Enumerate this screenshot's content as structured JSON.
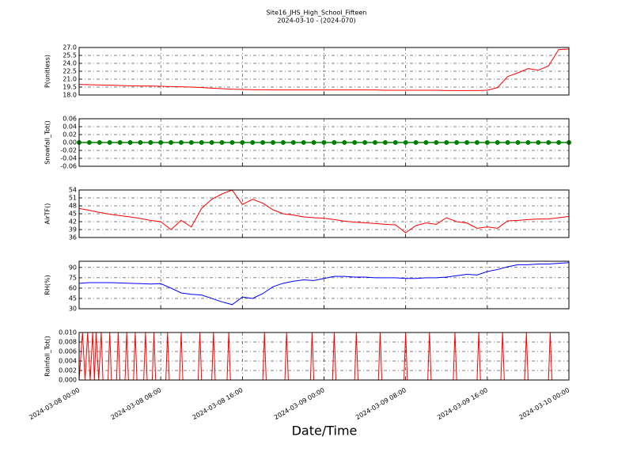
{
  "title": "Site16_JHS_High_School_Fifteen",
  "subtitle": "2024-03-10 - (2024-070)",
  "xlabel": "Date/Time",
  "chart_data": [
    {
      "type": "line",
      "ylabel": "P(unitless)",
      "color": "#ff0000",
      "xlim": [
        "2024-03-08 00:00",
        "2024-03-10 00:00"
      ],
      "xticks": [
        "2024-03-08 00:00",
        "2024-03-08 08:00",
        "2024-03-08 16:00",
        "2024-03-09 00:00",
        "2024-03-09 08:00",
        "2024-03-09 16:00",
        "2024-03-10 00:00"
      ],
      "ylim": [
        18,
        27
      ],
      "grid": true,
      "yticks": [
        {
          "value": 18,
          "label": "18.0"
        },
        {
          "value": 19.5,
          "label": "19.5"
        },
        {
          "value": 21,
          "label": "21.0"
        },
        {
          "value": 22.5,
          "label": "22.5"
        },
        {
          "value": 24,
          "label": "24.0"
        },
        {
          "value": 25.5,
          "label": "25.5"
        },
        {
          "value": 27,
          "label": "27.0"
        }
      ],
      "x": [
        "2024-03-08 00:00",
        "2024-03-08 01:00",
        "2024-03-08 02:00",
        "2024-03-08 03:00",
        "2024-03-08 04:00",
        "2024-03-08 05:00",
        "2024-03-08 06:00",
        "2024-03-08 07:00",
        "2024-03-08 08:00",
        "2024-03-08 09:00",
        "2024-03-08 10:00",
        "2024-03-08 11:00",
        "2024-03-08 12:00",
        "2024-03-08 13:00",
        "2024-03-08 14:00",
        "2024-03-08 15:00",
        "2024-03-08 16:00",
        "2024-03-08 17:00",
        "2024-03-08 18:00",
        "2024-03-08 19:00",
        "2024-03-08 20:00",
        "2024-03-08 21:00",
        "2024-03-08 22:00",
        "2024-03-08 23:00",
        "2024-03-09 00:00",
        "2024-03-09 01:00",
        "2024-03-09 02:00",
        "2024-03-09 03:00",
        "2024-03-09 04:00",
        "2024-03-09 05:00",
        "2024-03-09 06:00",
        "2024-03-09 07:00",
        "2024-03-09 08:00",
        "2024-03-09 09:00",
        "2024-03-09 10:00",
        "2024-03-09 11:00",
        "2024-03-09 12:00",
        "2024-03-09 13:00",
        "2024-03-09 14:00",
        "2024-03-09 15:00",
        "2024-03-09 16:00",
        "2024-03-09 17:00",
        "2024-03-09 18:00",
        "2024-03-09 19:00",
        "2024-03-09 20:00",
        "2024-03-09 21:00",
        "2024-03-09 22:00",
        "2024-03-09 23:00",
        "2024-03-10 00:00"
      ],
      "values": [
        20.0,
        19.95,
        19.9,
        19.85,
        19.8,
        19.75,
        19.7,
        19.7,
        19.65,
        19.6,
        19.55,
        19.5,
        19.4,
        19.3,
        19.2,
        19.1,
        19.05,
        19.0,
        19.0,
        18.95,
        18.95,
        18.95,
        18.95,
        18.95,
        18.95,
        18.95,
        18.95,
        18.95,
        18.95,
        18.95,
        18.9,
        18.9,
        18.9,
        18.9,
        18.9,
        18.9,
        18.85,
        18.85,
        18.85,
        18.85,
        18.9,
        19.4,
        21.5,
        22.2,
        23.0,
        22.7,
        23.5,
        26.6,
        26.7
      ]
    },
    {
      "type": "line",
      "ylabel": "Snowfall_Tot()",
      "color": "#008000",
      "marker": "o",
      "xlim": [
        "2024-03-08 00:00",
        "2024-03-10 00:00"
      ],
      "xticks": [
        "2024-03-08 00:00",
        "2024-03-08 08:00",
        "2024-03-08 16:00",
        "2024-03-09 00:00",
        "2024-03-09 08:00",
        "2024-03-09 16:00",
        "2024-03-10 00:00"
      ],
      "ylim": [
        -0.06,
        0.06
      ],
      "grid": true,
      "yticks": [
        {
          "value": -0.06,
          "label": "-0.06"
        },
        {
          "value": -0.04,
          "label": "-0.04"
        },
        {
          "value": -0.02,
          "label": "-0.02"
        },
        {
          "value": 0,
          "label": "0.00"
        },
        {
          "value": 0.02,
          "label": "0.02"
        },
        {
          "value": 0.04,
          "label": "0.04"
        },
        {
          "value": 0.06,
          "label": "0.06"
        }
      ],
      "x": [
        "2024-03-08 00:00",
        "2024-03-08 01:00",
        "2024-03-08 02:00",
        "2024-03-08 03:00",
        "2024-03-08 04:00",
        "2024-03-08 05:00",
        "2024-03-08 06:00",
        "2024-03-08 07:00",
        "2024-03-08 08:00",
        "2024-03-08 09:00",
        "2024-03-08 10:00",
        "2024-03-08 11:00",
        "2024-03-08 12:00",
        "2024-03-08 13:00",
        "2024-03-08 14:00",
        "2024-03-08 15:00",
        "2024-03-08 16:00",
        "2024-03-08 17:00",
        "2024-03-08 18:00",
        "2024-03-08 19:00",
        "2024-03-08 20:00",
        "2024-03-08 21:00",
        "2024-03-08 22:00",
        "2024-03-08 23:00",
        "2024-03-09 00:00",
        "2024-03-09 01:00",
        "2024-03-09 02:00",
        "2024-03-09 03:00",
        "2024-03-09 04:00",
        "2024-03-09 05:00",
        "2024-03-09 06:00",
        "2024-03-09 07:00",
        "2024-03-09 08:00",
        "2024-03-09 09:00",
        "2024-03-09 10:00",
        "2024-03-09 11:00",
        "2024-03-09 12:00",
        "2024-03-09 13:00",
        "2024-03-09 14:00",
        "2024-03-09 15:00",
        "2024-03-09 16:00",
        "2024-03-09 17:00",
        "2024-03-09 18:00",
        "2024-03-09 19:00",
        "2024-03-09 20:00",
        "2024-03-09 21:00",
        "2024-03-09 22:00",
        "2024-03-09 23:00",
        "2024-03-10 00:00"
      ],
      "values": [
        0,
        0,
        0,
        0,
        0,
        0,
        0,
        0,
        0,
        0,
        0,
        0,
        0,
        0,
        0,
        0,
        0,
        0,
        0,
        0,
        0,
        0,
        0,
        0,
        0,
        0,
        0,
        0,
        0,
        0,
        0,
        0,
        0,
        0,
        0,
        0,
        0,
        0,
        0,
        0,
        0,
        0,
        0,
        0,
        0,
        0,
        0,
        0,
        0
      ]
    },
    {
      "type": "line",
      "ylabel": "AirTF()",
      "color": "#ff0000",
      "xlim": [
        "2024-03-08 00:00",
        "2024-03-10 00:00"
      ],
      "xticks": [
        "2024-03-08 00:00",
        "2024-03-08 08:00",
        "2024-03-08 16:00",
        "2024-03-09 00:00",
        "2024-03-09 08:00",
        "2024-03-09 16:00",
        "2024-03-10 00:00"
      ],
      "ylim": [
        36,
        54
      ],
      "grid": true,
      "yticks": [
        36,
        39,
        42,
        45,
        48,
        51,
        54
      ],
      "x": [
        "2024-03-08 00:00",
        "2024-03-08 01:00",
        "2024-03-08 02:00",
        "2024-03-08 03:00",
        "2024-03-08 04:00",
        "2024-03-08 05:00",
        "2024-03-08 06:00",
        "2024-03-08 07:00",
        "2024-03-08 08:00",
        "2024-03-08 09:00",
        "2024-03-08 10:00",
        "2024-03-08 11:00",
        "2024-03-08 12:00",
        "2024-03-08 13:00",
        "2024-03-08 14:00",
        "2024-03-08 15:00",
        "2024-03-08 16:00",
        "2024-03-08 17:00",
        "2024-03-08 18:00",
        "2024-03-08 19:00",
        "2024-03-08 20:00",
        "2024-03-08 21:00",
        "2024-03-08 22:00",
        "2024-03-08 23:00",
        "2024-03-09 00:00",
        "2024-03-09 01:00",
        "2024-03-09 02:00",
        "2024-03-09 03:00",
        "2024-03-09 04:00",
        "2024-03-09 05:00",
        "2024-03-09 06:00",
        "2024-03-09 07:00",
        "2024-03-09 08:00",
        "2024-03-09 09:00",
        "2024-03-09 10:00",
        "2024-03-09 11:00",
        "2024-03-09 12:00",
        "2024-03-09 13:00",
        "2024-03-09 14:00",
        "2024-03-09 15:00",
        "2024-03-09 16:00",
        "2024-03-09 17:00",
        "2024-03-09 18:00",
        "2024-03-09 19:00",
        "2024-03-09 20:00",
        "2024-03-09 21:00",
        "2024-03-09 22:00",
        "2024-03-09 23:00",
        "2024-03-10 00:00"
      ],
      "values": [
        47,
        46.3,
        45.5,
        44.8,
        44.3,
        43.8,
        43.2,
        42.5,
        42,
        39,
        42.5,
        40,
        47,
        50.5,
        52.5,
        54,
        48.5,
        50.5,
        49,
        46.5,
        45,
        44.5,
        43.8,
        43.5,
        43.3,
        42.8,
        42.2,
        41.8,
        41.6,
        41.3,
        41,
        40.8,
        37.8,
        40.5,
        41.5,
        41,
        43.5,
        42,
        41.5,
        39.5,
        40,
        39.5,
        42.3,
        42.5,
        42.8,
        43,
        43,
        43.5,
        44
      ]
    },
    {
      "type": "line",
      "ylabel": "RH(%)",
      "color": "#0000ff",
      "xlim": [
        "2024-03-08 00:00",
        "2024-03-10 00:00"
      ],
      "xticks": [
        "2024-03-08 00:00",
        "2024-03-08 08:00",
        "2024-03-08 16:00",
        "2024-03-09 00:00",
        "2024-03-09 08:00",
        "2024-03-09 16:00",
        "2024-03-10 00:00"
      ],
      "ylim": [
        30,
        99
      ],
      "grid": true,
      "yticks": [
        30,
        45,
        60,
        75,
        90
      ],
      "x": [
        "2024-03-08 00:00",
        "2024-03-08 01:00",
        "2024-03-08 02:00",
        "2024-03-08 03:00",
        "2024-03-08 04:00",
        "2024-03-08 05:00",
        "2024-03-08 06:00",
        "2024-03-08 07:00",
        "2024-03-08 08:00",
        "2024-03-08 09:00",
        "2024-03-08 10:00",
        "2024-03-08 11:00",
        "2024-03-08 12:00",
        "2024-03-08 13:00",
        "2024-03-08 14:00",
        "2024-03-08 15:00",
        "2024-03-08 16:00",
        "2024-03-08 17:00",
        "2024-03-08 18:00",
        "2024-03-08 19:00",
        "2024-03-08 20:00",
        "2024-03-08 21:00",
        "2024-03-08 22:00",
        "2024-03-08 23:00",
        "2024-03-09 00:00",
        "2024-03-09 01:00",
        "2024-03-09 02:00",
        "2024-03-09 03:00",
        "2024-03-09 04:00",
        "2024-03-09 05:00",
        "2024-03-09 06:00",
        "2024-03-09 07:00",
        "2024-03-09 08:00",
        "2024-03-09 09:00",
        "2024-03-09 10:00",
        "2024-03-09 11:00",
        "2024-03-09 12:00",
        "2024-03-09 13:00",
        "2024-03-09 14:00",
        "2024-03-09 15:00",
        "2024-03-09 16:00",
        "2024-03-09 17:00",
        "2024-03-09 18:00",
        "2024-03-09 19:00",
        "2024-03-09 20:00",
        "2024-03-09 21:00",
        "2024-03-09 22:00",
        "2024-03-09 23:00",
        "2024-03-10 00:00"
      ],
      "values": [
        67,
        68,
        68,
        68,
        67.5,
        67,
        66.5,
        66,
        66.5,
        60,
        53,
        51,
        50,
        45,
        40,
        36,
        47,
        45,
        52,
        62,
        67,
        70,
        72,
        71,
        74,
        77,
        77,
        76,
        76,
        75,
        75,
        75,
        74,
        74,
        75,
        75,
        76,
        78,
        80,
        79,
        84,
        87,
        91,
        94,
        94,
        95,
        95,
        96,
        97
      ]
    },
    {
      "type": "line",
      "ylabel": "Rainfall_Tot()",
      "color": "#ff0000",
      "xlim": [
        "2024-03-08 00:00",
        "2024-03-10 00:00"
      ],
      "xticks": [
        "2024-03-08 00:00",
        "2024-03-08 08:00",
        "2024-03-08 16:00",
        "2024-03-09 00:00",
        "2024-03-09 08:00",
        "2024-03-09 16:00",
        "2024-03-10 00:00"
      ],
      "ylim": [
        0,
        0.01
      ],
      "grid": true,
      "yticks": [
        {
          "value": 0,
          "label": "0.000"
        },
        {
          "value": 0.002,
          "label": "0.002"
        },
        {
          "value": 0.004,
          "label": "0.004"
        },
        {
          "value": 0.006,
          "label": "0.006"
        },
        {
          "value": 0.008,
          "label": "0.008"
        },
        {
          "value": 0.01,
          "label": "0.010"
        }
      ],
      "x": [
        "2024-03-08 00:00",
        "2024-03-08 00:20",
        "2024-03-08 00:35",
        "2024-03-08 00:50",
        "2024-03-08 01:05",
        "2024-03-08 01:20",
        "2024-03-08 01:30",
        "2024-03-08 01:40",
        "2024-03-08 01:55",
        "2024-03-08 02:10",
        "2024-03-08 02:20",
        "2024-03-08 02:50",
        "2024-03-08 03:00",
        "2024-03-08 03:10",
        "2024-03-08 03:40",
        "2024-03-08 03:50",
        "2024-03-08 04:00",
        "2024-03-08 04:30",
        "2024-03-08 04:40",
        "2024-03-08 04:50",
        "2024-03-08 05:20",
        "2024-03-08 05:30",
        "2024-03-08 05:40",
        "2024-03-08 06:20",
        "2024-03-08 06:30",
        "2024-03-08 06:40",
        "2024-03-08 07:10",
        "2024-03-08 07:20",
        "2024-03-08 07:30",
        "2024-03-08 08:30",
        "2024-03-08 08:40",
        "2024-03-08 08:50",
        "2024-03-08 09:50",
        "2024-03-08 10:00",
        "2024-03-08 10:10",
        "2024-03-08 11:40",
        "2024-03-08 11:50",
        "2024-03-08 12:00",
        "2024-03-08 13:00",
        "2024-03-08 13:10",
        "2024-03-08 13:20",
        "2024-03-08 14:30",
        "2024-03-08 14:40",
        "2024-03-08 14:50",
        "2024-03-08 18:00",
        "2024-03-08 18:10",
        "2024-03-08 18:20",
        "2024-03-08 20:10",
        "2024-03-08 20:20",
        "2024-03-08 20:30",
        "2024-03-08 22:40",
        "2024-03-08 22:50",
        "2024-03-08 23:00",
        "2024-03-09 00:50",
        "2024-03-09 01:00",
        "2024-03-09 01:10",
        "2024-03-09 03:00",
        "2024-03-09 03:10",
        "2024-03-09 03:20",
        "2024-03-09 05:20",
        "2024-03-09 05:30",
        "2024-03-09 05:40",
        "2024-03-09 07:50",
        "2024-03-09 08:00",
        "2024-03-09 08:10",
        "2024-03-09 10:10",
        "2024-03-09 10:20",
        "2024-03-09 10:30",
        "2024-03-09 12:40",
        "2024-03-09 12:50",
        "2024-03-09 13:00",
        "2024-03-09 15:00",
        "2024-03-09 15:10",
        "2024-03-09 15:20",
        "2024-03-09 17:20",
        "2024-03-09 17:30",
        "2024-03-09 17:40",
        "2024-03-09 19:40",
        "2024-03-09 19:50",
        "2024-03-09 20:00",
        "2024-03-09 22:00",
        "2024-03-09 22:10",
        "2024-03-09 22:20",
        "2024-03-10 00:00"
      ],
      "values": [
        0,
        0.01,
        0,
        0.01,
        0,
        0.01,
        0,
        0.01,
        0,
        0.01,
        0,
        0,
        0.01,
        0,
        0,
        0.01,
        0,
        0,
        0.01,
        0,
        0,
        0.01,
        0,
        0,
        0.01,
        0,
        0,
        0.01,
        0,
        0,
        0.01,
        0,
        0,
        0.01,
        0,
        0,
        0.01,
        0,
        0,
        0.01,
        0,
        0,
        0.01,
        0,
        0,
        0.01,
        0,
        0,
        0.01,
        0,
        0,
        0.01,
        0,
        0,
        0.01,
        0,
        0,
        0.01,
        0,
        0,
        0.01,
        0,
        0,
        0.01,
        0,
        0,
        0.01,
        0,
        0,
        0.01,
        0,
        0,
        0.01,
        0,
        0,
        0.01,
        0,
        0,
        0.01,
        0,
        0,
        0.01,
        0,
        0
      ]
    }
  ]
}
